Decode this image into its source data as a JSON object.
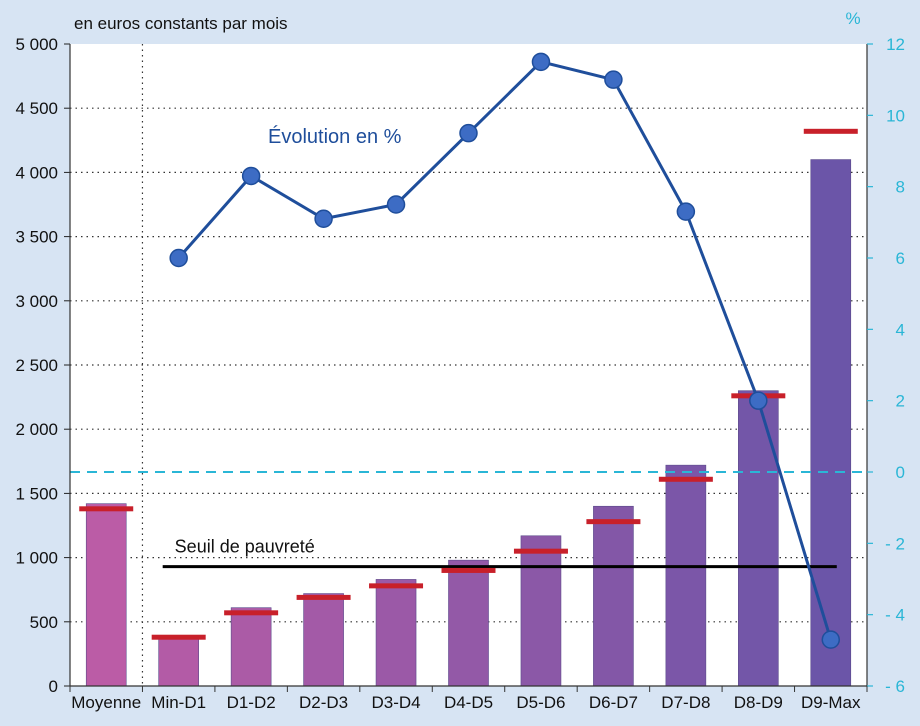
{
  "chart_data": {
    "type": "bar",
    "title": "",
    "unit_left": "en euros constants par mois",
    "unit_right": "%",
    "categories": [
      "Moyenne",
      "Min-D1",
      "D1-D2",
      "D2-D3",
      "D3-D4",
      "D4-D5",
      "D5-D6",
      "D6-D7",
      "D7-D8",
      "D8-D9",
      "D9-Max"
    ],
    "ylim": [
      0,
      5000
    ],
    "y2lim": [
      -6,
      12
    ],
    "yticks": [
      "0",
      "500",
      "1 000",
      "1 500",
      "2 000",
      "2 500",
      "3 000",
      "3 500",
      "4 000",
      "4 500",
      "5 000"
    ],
    "y2ticks": [
      "- 6",
      "- 4",
      "- 2",
      "0",
      "2",
      "4",
      "6",
      "8",
      "10",
      "12"
    ],
    "grid": true,
    "series": [
      {
        "kind": "bar",
        "values": [
          1420,
          380,
          610,
          720,
          830,
          980,
          1170,
          1400,
          1720,
          2300,
          4100
        ]
      },
      {
        "kind": "marker",
        "values": [
          1380,
          380,
          570,
          690,
          780,
          900,
          1050,
          1280,
          1610,
          2260,
          4320
        ]
      },
      {
        "kind": "line",
        "axis": "right",
        "name": "Évolution en %",
        "values": [
          null,
          6.0,
          8.3,
          7.1,
          7.5,
          9.5,
          11.5,
          11.0,
          7.3,
          2.0,
          -4.7
        ]
      }
    ],
    "reference_lines": [
      {
        "axis": "left",
        "value": 930,
        "label": "Seuil de pauvreté",
        "color": "#000000"
      },
      {
        "axis": "right",
        "value": 0,
        "label": "",
        "color": "#2ab6d6"
      }
    ],
    "colors": {
      "background": "#d7e4f3",
      "plot_background": "#ffffff",
      "bar_start": "#bb5ca6",
      "bar_end": "#6b55a8",
      "marker": "#c8202a",
      "line": "#1f4e9b",
      "line_point": "#3d6cc4",
      "right_axis": "#2ab6d6",
      "evolution_label": "#1f4e9b"
    }
  }
}
